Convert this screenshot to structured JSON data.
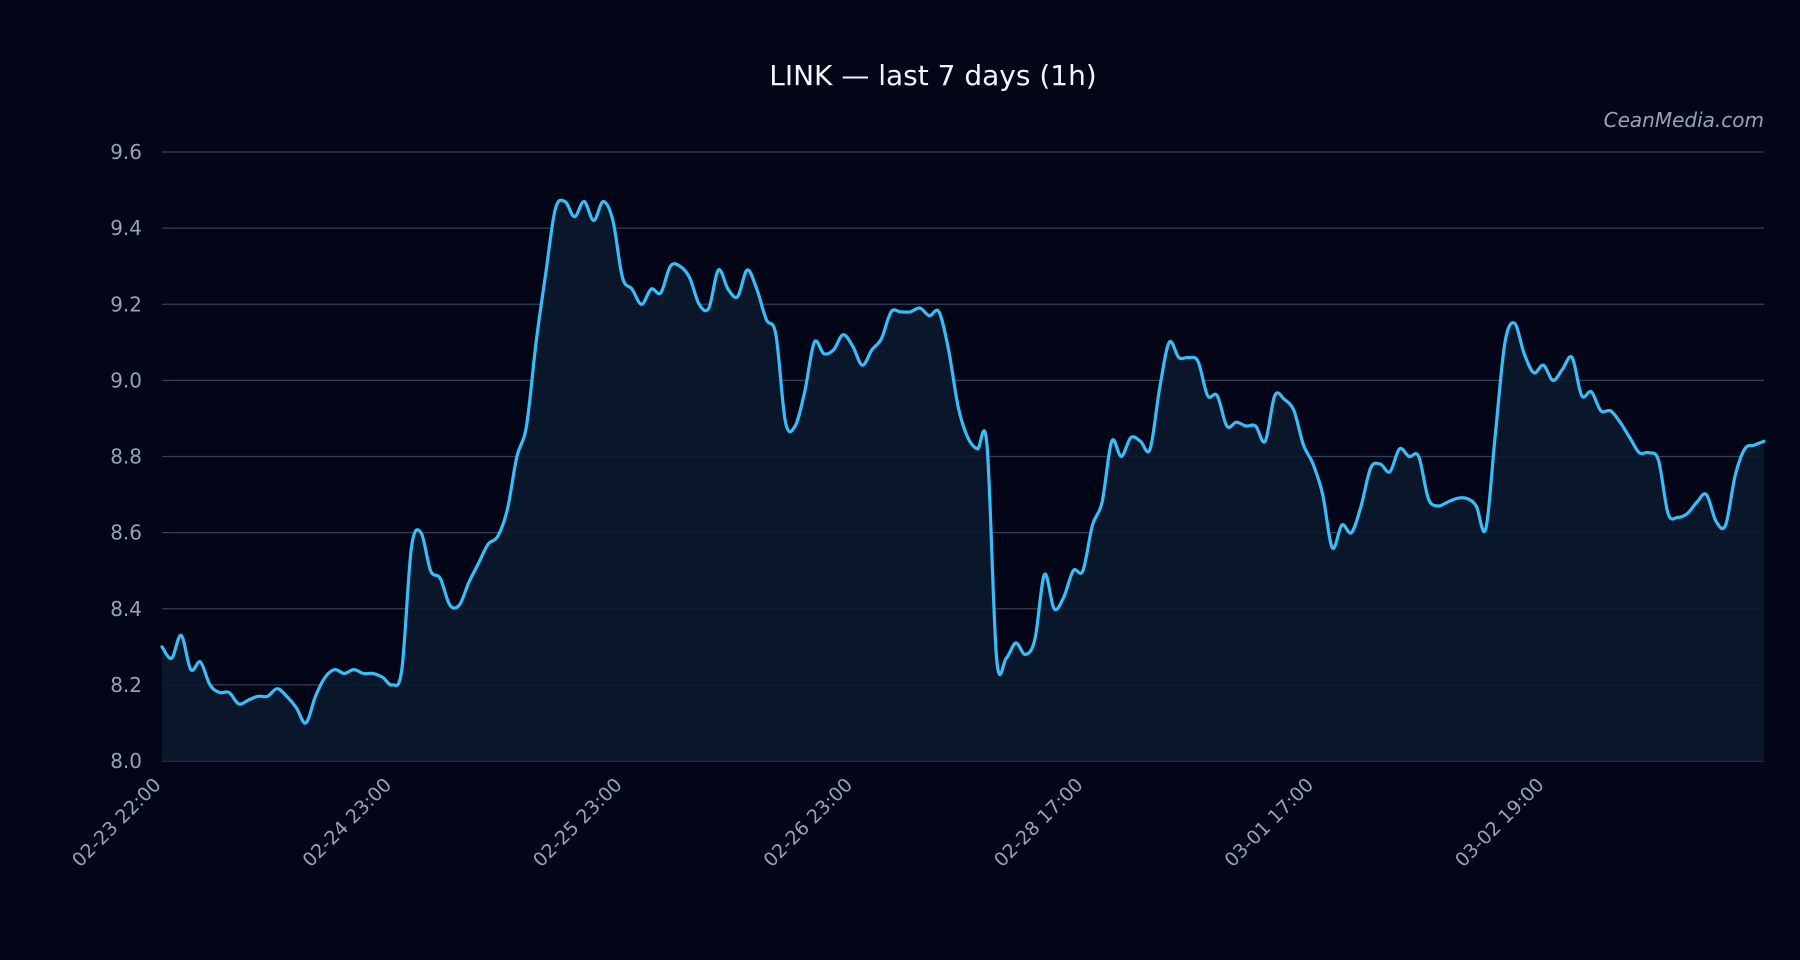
{
  "colors": {
    "background": "#020617",
    "line": "#38bdf8",
    "fill": "#0b1a2e",
    "grid": "#334155",
    "text": "#94a3b8",
    "title": "#f1f5f9"
  },
  "watermark": "CeanMedia.com",
  "chart_data": {
    "type": "area",
    "title": "LINK — last 7 days (1h)",
    "xlabel": "",
    "ylabel": "",
    "ylim": [
      8.0,
      9.6
    ],
    "yticks": [
      "8.0",
      "8.2",
      "8.4",
      "8.6",
      "8.8",
      "9.0",
      "9.2",
      "9.4",
      "9.6"
    ],
    "xticks": [
      "02-23 22:00",
      "02-24 23:00",
      "02-25 23:00",
      "02-26 23:00",
      "02-28 17:00",
      "03-01 17:00",
      "03-02 19:00"
    ],
    "grid": true,
    "legend": "none",
    "series": [
      {
        "values": [
          8.3,
          8.27,
          8.33,
          8.24,
          8.26,
          8.2,
          8.18,
          8.18,
          8.15,
          8.16,
          8.17,
          8.17,
          8.19,
          8.17,
          8.14,
          8.1,
          8.17,
          8.22,
          8.24,
          8.23,
          8.24,
          8.23,
          8.23,
          8.22,
          8.2,
          8.24,
          8.56,
          8.6,
          8.5,
          8.48,
          8.41,
          8.41,
          8.47,
          8.52,
          8.57,
          8.59,
          8.66,
          8.8,
          8.88,
          9.1,
          9.28,
          9.45,
          9.47,
          9.43,
          9.47,
          9.42,
          9.47,
          9.42,
          9.27,
          9.24,
          9.2,
          9.24,
          9.23,
          9.3,
          9.3,
          9.27,
          9.2,
          9.19,
          9.29,
          9.24,
          9.22,
          9.29,
          9.24,
          9.16,
          9.12,
          8.89,
          8.88,
          8.97,
          9.1,
          9.07,
          9.08,
          9.12,
          9.09,
          9.04,
          9.08,
          9.11,
          9.18,
          9.18,
          9.18,
          9.19,
          9.17,
          9.18,
          9.08,
          8.93,
          8.85,
          8.82,
          8.83,
          8.27,
          8.27,
          8.31,
          8.28,
          8.32,
          8.49,
          8.4,
          8.43,
          8.5,
          8.5,
          8.62,
          8.68,
          8.84,
          8.8,
          8.85,
          8.84,
          8.82,
          8.98,
          9.1,
          9.06,
          9.06,
          9.05,
          8.96,
          8.96,
          8.88,
          8.89,
          8.88,
          8.88,
          8.84,
          8.96,
          8.95,
          8.92,
          8.83,
          8.78,
          8.7,
          8.56,
          8.62,
          8.6,
          8.67,
          8.77,
          8.78,
          8.76,
          8.82,
          8.8,
          8.8,
          8.69,
          8.67,
          8.68,
          8.69,
          8.69,
          8.67,
          8.61,
          8.86,
          9.1,
          9.15,
          9.07,
          9.02,
          9.04,
          9.0,
          9.03,
          9.06,
          8.96,
          8.97,
          8.92,
          8.92,
          8.89,
          8.85,
          8.81,
          8.81,
          8.79,
          8.65,
          8.64,
          8.65,
          8.68,
          8.7,
          8.63,
          8.62,
          8.75,
          8.82,
          8.83,
          8.84
        ]
      }
    ]
  }
}
